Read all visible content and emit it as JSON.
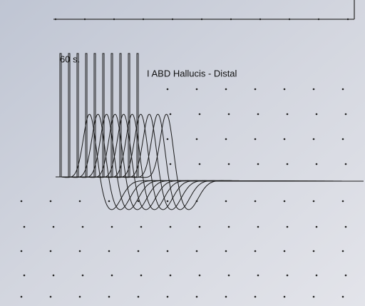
{
  "labels": {
    "time": "60 s.",
    "muscle": "I ABD Hallucis - Distal"
  }
}
